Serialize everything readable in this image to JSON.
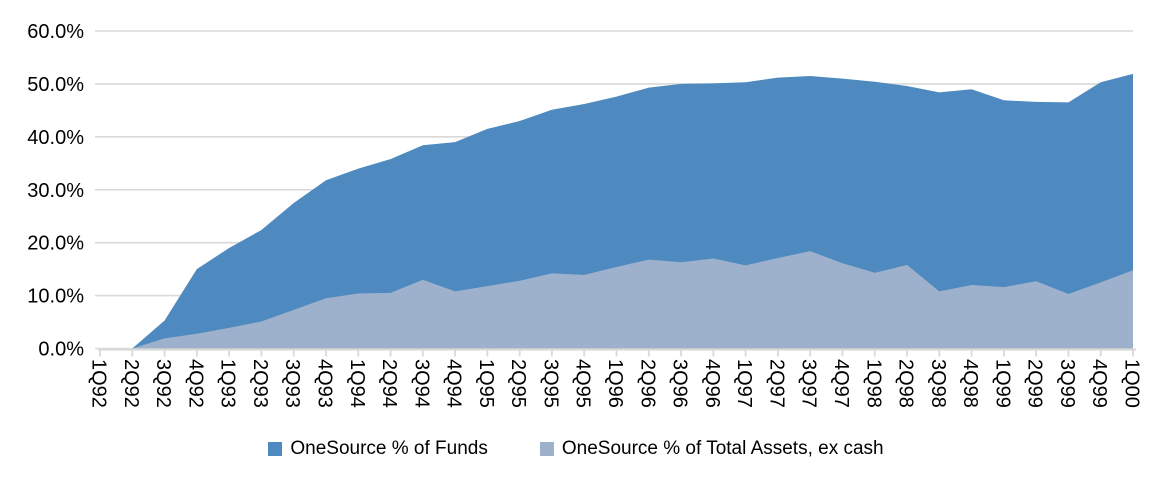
{
  "chart_data": {
    "type": "area",
    "title": "",
    "xlabel": "",
    "ylabel": "",
    "categories": [
      "1Q92",
      "2Q92",
      "3Q92",
      "4Q92",
      "1Q93",
      "2Q93",
      "3Q93",
      "4Q93",
      "1Q94",
      "2Q94",
      "3Q94",
      "4Q94",
      "1Q95",
      "2Q95",
      "3Q95",
      "4Q95",
      "1Q96",
      "2Q96",
      "3Q96",
      "4Q96",
      "1Q97",
      "2Q97",
      "3Q97",
      "4Q97",
      "1Q98",
      "2Q98",
      "3Q98",
      "4Q98",
      "1Q99",
      "2Q99",
      "3Q99",
      "4Q99",
      "1Q00"
    ],
    "series": [
      {
        "name": "OneSource % of Funds",
        "color": "#4E8ABF",
        "values": [
          0,
          0,
          5.3,
          15.0,
          19.0,
          22.4,
          27.5,
          31.8,
          34.0,
          35.8,
          38.4,
          39.0,
          41.5,
          43.0,
          45.1,
          46.2,
          47.6,
          49.3,
          50.0,
          50.1,
          50.3,
          51.2,
          51.5,
          51.0,
          50.4,
          49.6,
          48.4,
          49.0,
          46.9,
          46.6,
          46.5,
          50.3,
          51.9
        ]
      },
      {
        "name": "OneSource % of Total Assets, ex cash",
        "color": "#9DB1CC",
        "values": [
          0,
          0,
          1.9,
          2.8,
          3.9,
          5.1,
          7.3,
          9.5,
          10.4,
          10.5,
          13.0,
          10.8,
          11.8,
          12.8,
          14.2,
          13.9,
          15.4,
          16.8,
          16.3,
          17.0,
          15.7,
          17.1,
          18.4,
          16.1,
          14.3,
          15.8,
          10.8,
          12.0,
          11.6,
          12.7,
          10.3,
          12.5,
          14.8
        ]
      }
    ],
    "ylim": [
      0,
      60
    ],
    "ytick_interval": 10,
    "ytick_labels": [
      "60.0%",
      "50.0%",
      "40.0%",
      "30.0%",
      "20.0%",
      "10.0%",
      "0.0%"
    ],
    "grid": true,
    "grid_color": "#D9D9D9",
    "axis_color": "#D9D9D9",
    "text_color": "#000000",
    "legend_position": "bottom"
  }
}
